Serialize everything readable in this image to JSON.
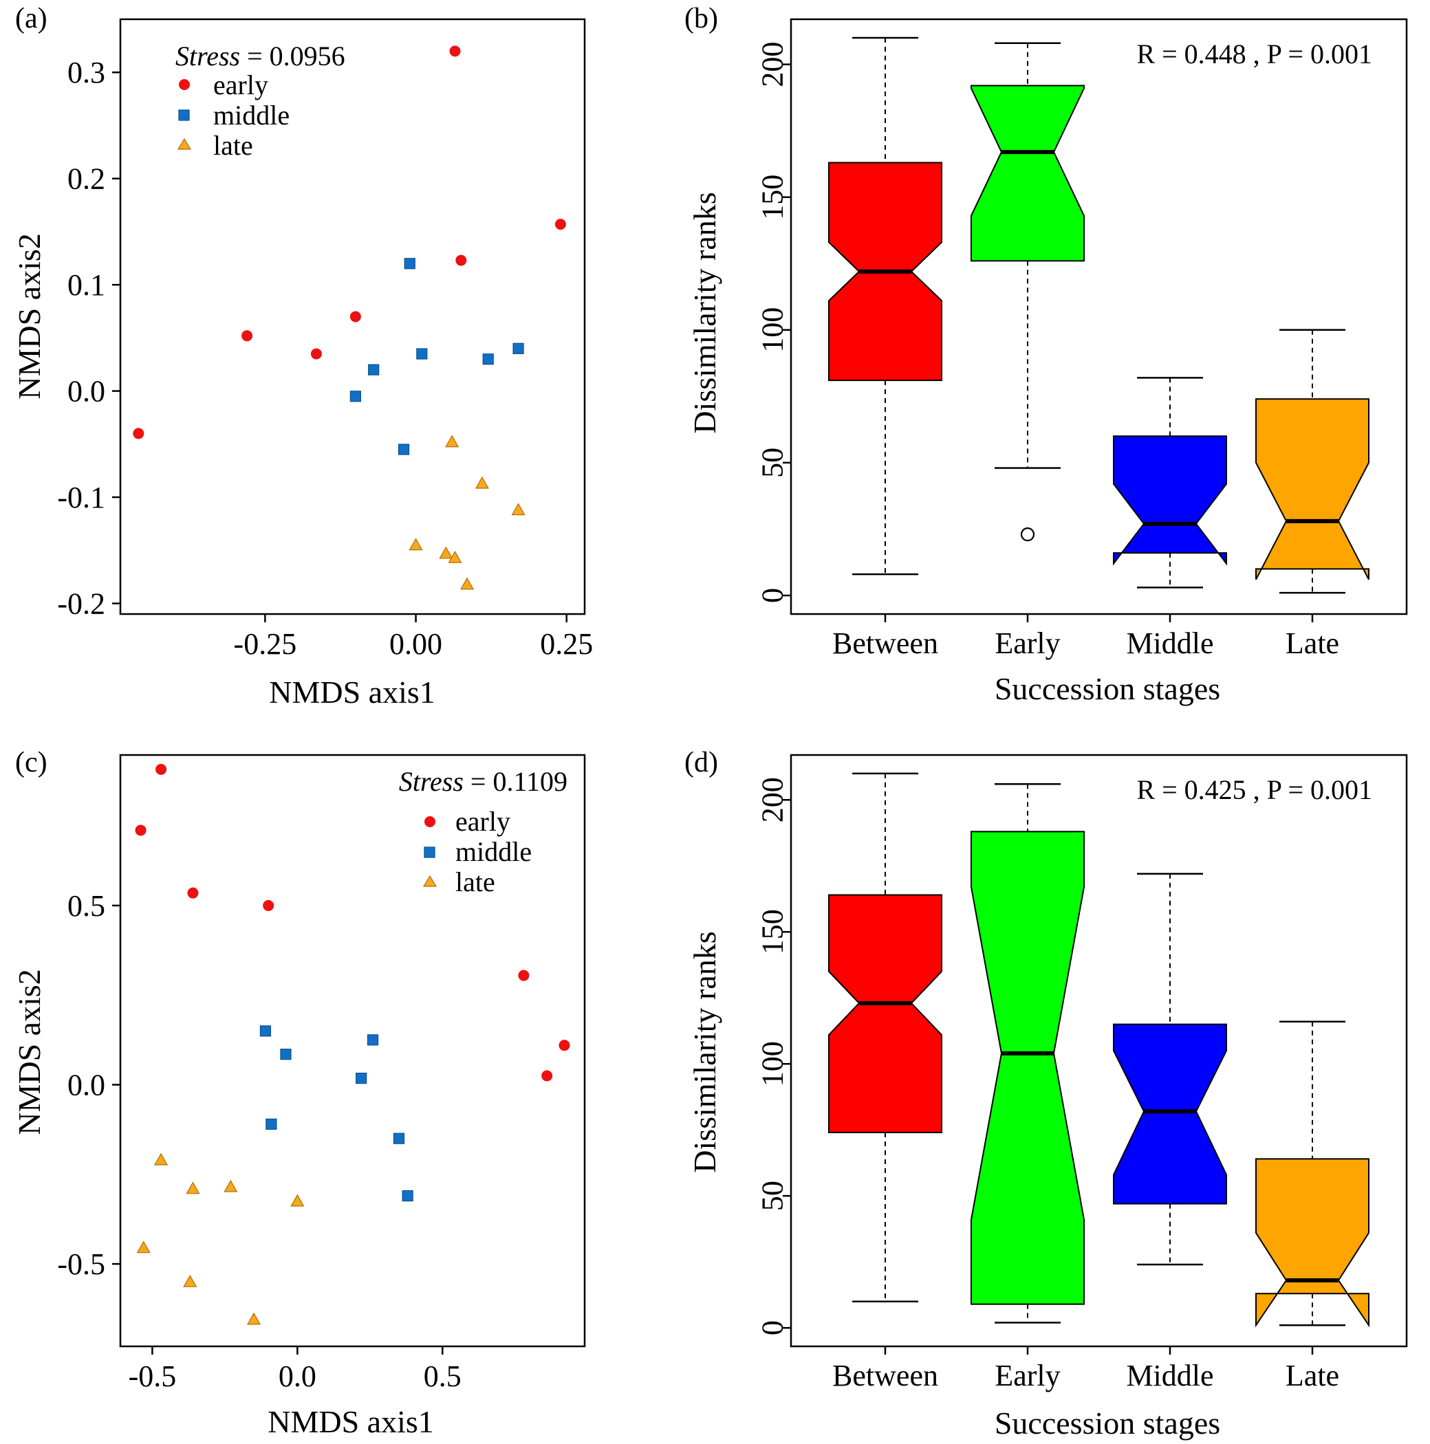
{
  "colors": {
    "early": "#ee1111",
    "middle": "#1170c6",
    "late": "#f7a81d",
    "box_between": "#ff0000",
    "box_early": "#00ff00",
    "box_middle": "#0000ff",
    "box_late": "#ffa500"
  },
  "chart_data": [
    {
      "id": "a",
      "type": "scatter",
      "panel_label": "(a)",
      "stress_label": "Stress",
      "stress_value": " = 0.0956",
      "xlabel": "NMDS axis1",
      "ylabel": "NMDS axis2",
      "xlim": [
        -0.49,
        0.28
      ],
      "ylim": [
        -0.21,
        0.35
      ],
      "xticks": [
        -0.25,
        0.0,
        0.25
      ],
      "xtick_labels": [
        "-0.25",
        "0.00",
        "0.25"
      ],
      "yticks": [
        -0.2,
        -0.1,
        0.0,
        0.1,
        0.2,
        0.3
      ],
      "ytick_labels": [
        "-0.2",
        "-0.1",
        "0.0",
        "0.1",
        "0.2",
        "0.3"
      ],
      "legend": [
        "early",
        "middle",
        "late"
      ],
      "legend_position": "top-left",
      "series": [
        {
          "name": "early",
          "marker": "circle",
          "points": [
            [
              -0.46,
              -0.04
            ],
            [
              -0.28,
              0.052
            ],
            [
              -0.165,
              0.035
            ],
            [
              -0.1,
              0.07
            ],
            [
              0.065,
              0.32
            ],
            [
              0.075,
              0.123
            ],
            [
              0.24,
              0.157
            ]
          ]
        },
        {
          "name": "middle",
          "marker": "square",
          "points": [
            [
              -0.01,
              0.12
            ],
            [
              0.01,
              0.035
            ],
            [
              -0.07,
              0.02
            ],
            [
              -0.1,
              -0.005
            ],
            [
              -0.02,
              -0.055
            ],
            [
              0.12,
              0.03
            ],
            [
              0.17,
              0.04
            ]
          ]
        },
        {
          "name": "late",
          "marker": "triangle",
          "points": [
            [
              0.06,
              -0.048
            ],
            [
              0.11,
              -0.087
            ],
            [
              0.17,
              -0.112
            ],
            [
              0.0,
              -0.145
            ],
            [
              0.05,
              -0.153
            ],
            [
              0.065,
              -0.157
            ],
            [
              0.085,
              -0.182
            ]
          ]
        }
      ]
    },
    {
      "id": "b",
      "type": "boxplot",
      "panel_label": "(b)",
      "stat_text": "R =  0.448 ,  P =  0.001",
      "xlabel": "Succession stages",
      "ylabel": "Dissimilarity ranks",
      "ylim": [
        -7,
        217
      ],
      "yticks": [
        0,
        50,
        100,
        150,
        200
      ],
      "ytick_labels": [
        "0",
        "50",
        "100",
        "150",
        "200"
      ],
      "categories": [
        "Between",
        "Early",
        "Middle",
        "Late"
      ],
      "boxes": [
        {
          "name": "Between",
          "color_key": "box_between",
          "lower_whisker": 8,
          "q1": 81,
          "median": 122,
          "q3": 163,
          "upper_whisker": 210,
          "notch_low": 111,
          "notch_high": 133,
          "outliers": []
        },
        {
          "name": "Early",
          "color_key": "box_early",
          "lower_whisker": 48,
          "q1": 126,
          "median": 167,
          "q3": 192,
          "upper_whisker": 208,
          "notch_low": 143,
          "notch_high": 191,
          "outliers": [
            23
          ]
        },
        {
          "name": "Middle",
          "color_key": "box_middle",
          "lower_whisker": 3,
          "q1": 16,
          "median": 27,
          "q3": 60,
          "upper_whisker": 82,
          "notch_low": 12,
          "notch_high": 42,
          "outliers": []
        },
        {
          "name": "Late",
          "color_key": "box_late",
          "lower_whisker": 1,
          "q1": 10,
          "median": 28,
          "q3": 74,
          "upper_whisker": 100,
          "notch_low": 6,
          "notch_high": 50,
          "outliers": []
        }
      ]
    },
    {
      "id": "c",
      "type": "scatter",
      "panel_label": "(c)",
      "stress_label": "Stress",
      "stress_value": " = 0.1109",
      "xlabel": "NMDS axis1",
      "ylabel": "NMDS axis2",
      "xlim": [
        -0.61,
        0.99
      ],
      "ylim": [
        -0.73,
        0.92
      ],
      "xticks": [
        -0.5,
        0.0,
        0.5
      ],
      "xtick_labels": [
        "-0.5",
        "0.0",
        "0.5"
      ],
      "yticks": [
        -0.5,
        0.0,
        0.5
      ],
      "ytick_labels": [
        "-0.5",
        "0.0",
        "0.5"
      ],
      "legend": [
        "early",
        "middle",
        "late"
      ],
      "legend_position": "top-right",
      "series": [
        {
          "name": "early",
          "marker": "circle",
          "points": [
            [
              -0.47,
              0.88
            ],
            [
              -0.54,
              0.71
            ],
            [
              -0.36,
              0.535
            ],
            [
              -0.1,
              0.5
            ],
            [
              0.78,
              0.305
            ],
            [
              0.92,
              0.11
            ],
            [
              0.86,
              0.025
            ]
          ]
        },
        {
          "name": "middle",
          "marker": "square",
          "points": [
            [
              -0.11,
              0.15
            ],
            [
              -0.04,
              0.085
            ],
            [
              0.26,
              0.125
            ],
            [
              0.22,
              0.018
            ],
            [
              -0.09,
              -0.11
            ],
            [
              0.35,
              -0.15
            ],
            [
              0.38,
              -0.31
            ]
          ]
        },
        {
          "name": "late",
          "marker": "triangle",
          "points": [
            [
              -0.47,
              -0.21
            ],
            [
              -0.36,
              -0.29
            ],
            [
              -0.23,
              -0.285
            ],
            [
              0.0,
              -0.325
            ],
            [
              -0.53,
              -0.455
            ],
            [
              -0.37,
              -0.55
            ],
            [
              -0.15,
              -0.655
            ]
          ]
        }
      ]
    },
    {
      "id": "d",
      "type": "boxplot",
      "panel_label": "(d)",
      "stat_text": "R =  0.425 ,  P =  0.001",
      "xlabel": "Succession stages",
      "ylabel": "Dissimilarity ranks",
      "ylim": [
        -7,
        217
      ],
      "yticks": [
        0,
        50,
        100,
        150,
        200
      ],
      "ytick_labels": [
        "0",
        "50",
        "100",
        "150",
        "200"
      ],
      "categories": [
        "Between",
        "Early",
        "Middle",
        "Late"
      ],
      "boxes": [
        {
          "name": "Between",
          "color_key": "box_between",
          "lower_whisker": 10,
          "q1": 74,
          "median": 123,
          "q3": 164,
          "upper_whisker": 210,
          "notch_low": 111,
          "notch_high": 135,
          "outliers": []
        },
        {
          "name": "Early",
          "color_key": "box_early",
          "lower_whisker": 2,
          "q1": 9,
          "median": 104,
          "q3": 188,
          "upper_whisker": 206,
          "notch_low": 41,
          "notch_high": 167,
          "outliers": []
        },
        {
          "name": "Middle",
          "color_key": "box_middle",
          "lower_whisker": 24,
          "q1": 47,
          "median": 82,
          "q3": 115,
          "upper_whisker": 172,
          "notch_low": 58,
          "notch_high": 105,
          "outliers": []
        },
        {
          "name": "Late",
          "color_key": "box_late",
          "lower_whisker": 1,
          "q1": 13,
          "median": 18,
          "q3": 64,
          "upper_whisker": 116,
          "notch_low": 1,
          "notch_high": 36,
          "outliers": []
        }
      ]
    }
  ]
}
